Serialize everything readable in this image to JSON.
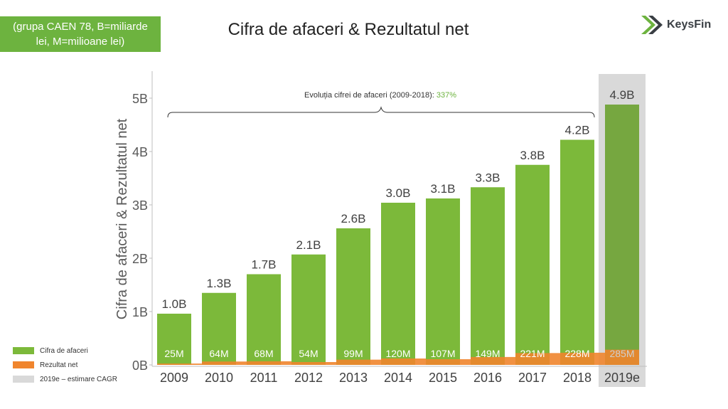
{
  "note": "(grupa CAEN 78, B=miliarde\nlei, M=milioane lei)",
  "title": "Cifra de afaceri & Rezultatul net",
  "brand": {
    "name": "KeysFin",
    "color_dark": "#3a3f44",
    "color_green": "#6db33f"
  },
  "chart_data": {
    "type": "bar",
    "categories": [
      "2009",
      "2010",
      "2011",
      "2012",
      "2013",
      "2014",
      "2015",
      "2016",
      "2017",
      "2018",
      "2019e"
    ],
    "series": [
      {
        "name": "Cifra de afaceri",
        "values": [
          0.96,
          1.35,
          1.7,
          2.07,
          2.56,
          3.04,
          3.12,
          3.33,
          3.75,
          4.22,
          4.88
        ],
        "labels": [
          "1.0B",
          "1.3B",
          "1.7B",
          "2.1B",
          "2.6B",
          "3.0B",
          "3.1B",
          "3.3B",
          "3.8B",
          "4.2B",
          "4.9B"
        ],
        "color": "#7cb93a",
        "estimate_color": "#76a740"
      },
      {
        "name": "Rezultat net",
        "values": [
          25,
          64,
          68,
          54,
          99,
          120,
          107,
          149,
          221,
          228,
          285
        ],
        "labels": [
          "25M",
          "64M",
          "68M",
          "54M",
          "99M",
          "120M",
          "107M",
          "149M",
          "221M",
          "228M",
          "285M"
        ],
        "color": "#f0852d"
      }
    ],
    "ylabel": "Cifra de afaceri & Rezultatul net",
    "yticks": [
      "0B",
      "1B",
      "2B",
      "3B",
      "4B",
      "5B"
    ],
    "ylim": [
      0,
      5.5
    ],
    "annotation": {
      "text": "Evoluția cifrei de afaceri (2009-2018): ",
      "value": "337%",
      "value_color": "#6db33f"
    },
    "estimate_note": "2019e – estimare CAGR",
    "estimate_shade_color": "#d9d9d9",
    "grid": false,
    "legend_position": "bottom-left"
  },
  "legend": [
    {
      "label": "Cifra de afaceri",
      "color": "#7cb93a"
    },
    {
      "label": "Rezultat net",
      "color": "#f0852d"
    },
    {
      "label": "2019e – estimare CAGR",
      "color": "#d9d9d9"
    }
  ]
}
